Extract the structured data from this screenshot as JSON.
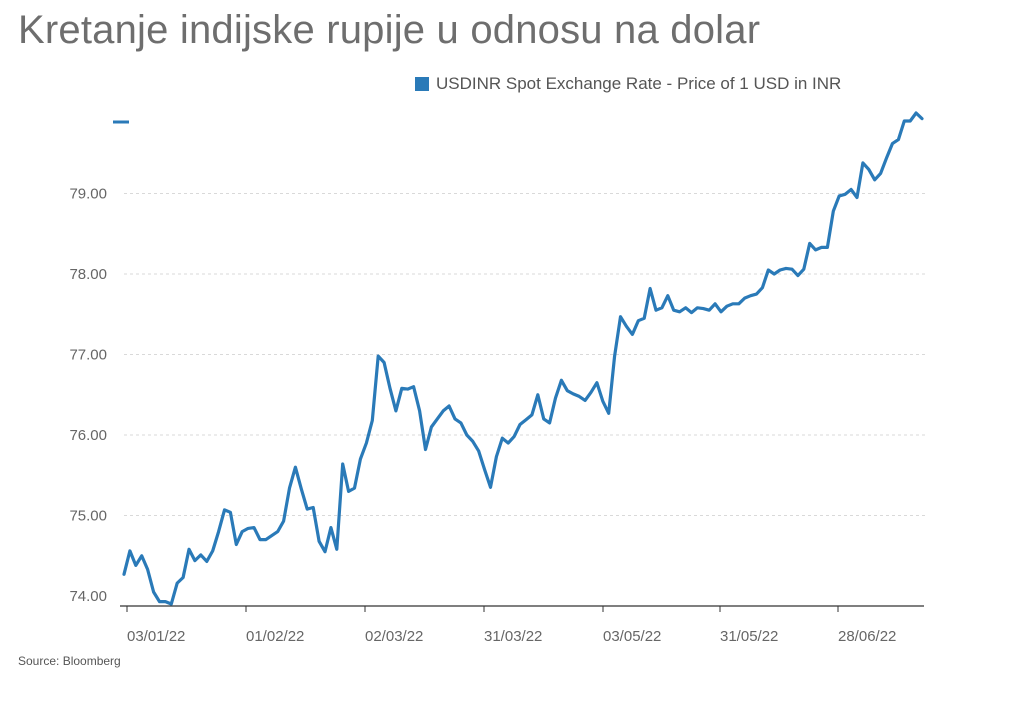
{
  "header": {
    "title": "Kretanje indijske rupije u odnosu na dolar"
  },
  "footer": {
    "source": "Source: Bloomberg"
  },
  "colors": {
    "series": "#2a7ab8",
    "axis": "#333333",
    "grid": "#d9d9d9",
    "text": "#666666"
  },
  "chart_data": {
    "type": "line",
    "title": "Kretanje indijske rupije u odnosu na dolar",
    "xlabel": "",
    "ylabel": "",
    "ylim": [
      73.9,
      80.0
    ],
    "y_ticks": [
      74.0,
      75.0,
      76.0,
      77.0,
      78.0,
      79.0
    ],
    "y_tick_labels": [
      "74.00",
      "75.00",
      "76.00",
      "77.00",
      "78.00",
      "79.00"
    ],
    "x_tick_labels": [
      "03/01/22",
      "01/02/22",
      "02/03/22",
      "31/03/22",
      "03/05/22",
      "31/05/22",
      "28/06/22"
    ],
    "grid": true,
    "legend_position": "top-right",
    "series": [
      {
        "name": "USDINR Spot Exchange Rate - Price of 1 USD in INR",
        "color": "#2a7ab8",
        "values": [
          74.27,
          74.56,
          74.38,
          74.5,
          74.33,
          74.05,
          73.93,
          73.93,
          73.9,
          74.16,
          74.23,
          74.58,
          74.44,
          74.51,
          74.43,
          74.56,
          74.8,
          75.07,
          75.04,
          74.64,
          74.8,
          74.84,
          74.85,
          74.7,
          74.7,
          74.75,
          74.8,
          74.93,
          75.34,
          75.6,
          75.33,
          75.08,
          75.1,
          74.68,
          74.55,
          74.85,
          74.58,
          75.64,
          75.3,
          75.34,
          75.7,
          75.9,
          76.18,
          76.98,
          76.9,
          76.58,
          76.3,
          76.58,
          76.57,
          76.6,
          76.3,
          75.82,
          76.1,
          76.2,
          76.3,
          76.36,
          76.2,
          76.15,
          76.0,
          75.92,
          75.8,
          75.57,
          75.35,
          75.73,
          75.96,
          75.9,
          75.98,
          76.13,
          76.19,
          76.25,
          76.5,
          76.2,
          76.15,
          76.46,
          76.68,
          76.55,
          76.51,
          76.48,
          76.43,
          76.53,
          76.65,
          76.42,
          76.27,
          76.98,
          77.47,
          77.35,
          77.25,
          77.42,
          77.45,
          77.82,
          77.55,
          77.58,
          77.73,
          77.55,
          77.53,
          77.58,
          77.52,
          77.58,
          77.57,
          77.55,
          77.63,
          77.53,
          77.6,
          77.63,
          77.63,
          77.7,
          77.73,
          77.75,
          77.83,
          78.05,
          78.0,
          78.05,
          78.07,
          78.06,
          77.98,
          78.06,
          78.38,
          78.3,
          78.33,
          78.33,
          78.78,
          78.97,
          78.99,
          79.05,
          78.95,
          79.38,
          79.3,
          79.17,
          79.25,
          79.44,
          79.62,
          79.67,
          79.9,
          79.9,
          80.0,
          79.93
        ]
      }
    ]
  }
}
